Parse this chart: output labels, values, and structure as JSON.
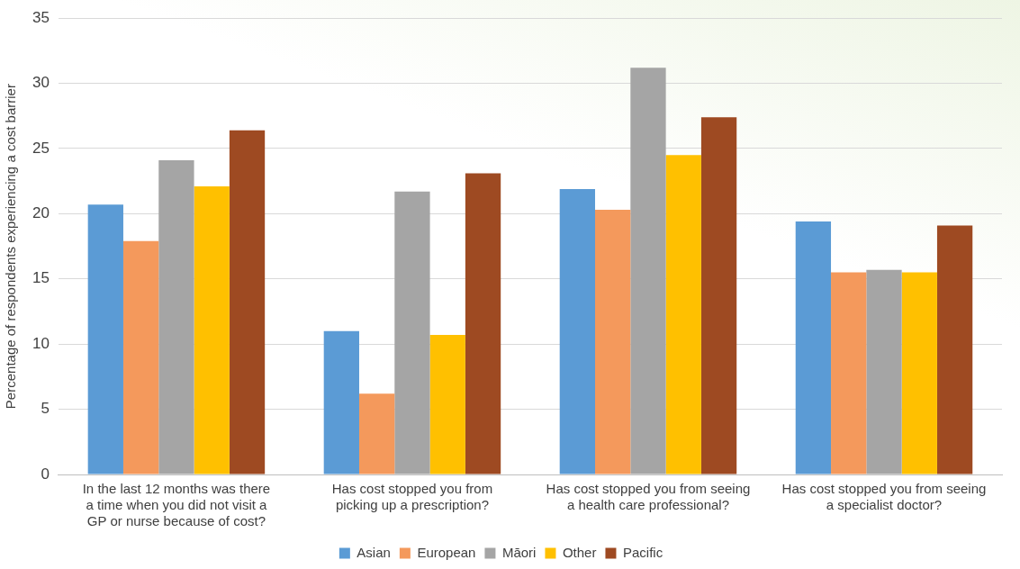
{
  "chart_data": {
    "type": "bar",
    "ylabel": "Percentage of respondents experiencing a cost barrier",
    "categories": [
      "In the last 12 months was there a time when you did not visit a GP or nurse because of cost?",
      "Has cost stopped you from picking up a prescription?",
      "Has cost stopped you from seeing a health care professional?",
      "Has cost stopped you from seeing a specialist doctor?"
    ],
    "series": [
      {
        "name": "Asian",
        "color": "#5b9bd5",
        "values": [
          20.7,
          11.0,
          21.9,
          19.4
        ]
      },
      {
        "name": "European",
        "color": "#f4995c",
        "values": [
          17.9,
          6.2,
          20.3,
          15.5
        ]
      },
      {
        "name": "Māori",
        "color": "#a5a5a5",
        "values": [
          24.1,
          21.7,
          31.2,
          15.7
        ]
      },
      {
        "name": "Other",
        "color": "#ffc000",
        "values": [
          22.1,
          10.7,
          24.5,
          15.5
        ]
      },
      {
        "name": "Pacific",
        "color": "#9e4a22",
        "values": [
          26.4,
          23.1,
          27.4,
          19.1
        ]
      }
    ],
    "ylim": [
      0,
      35
    ],
    "yticks": [
      0,
      5,
      10,
      15,
      20,
      25,
      30,
      35
    ],
    "grid": "y",
    "legend": "bottom"
  }
}
